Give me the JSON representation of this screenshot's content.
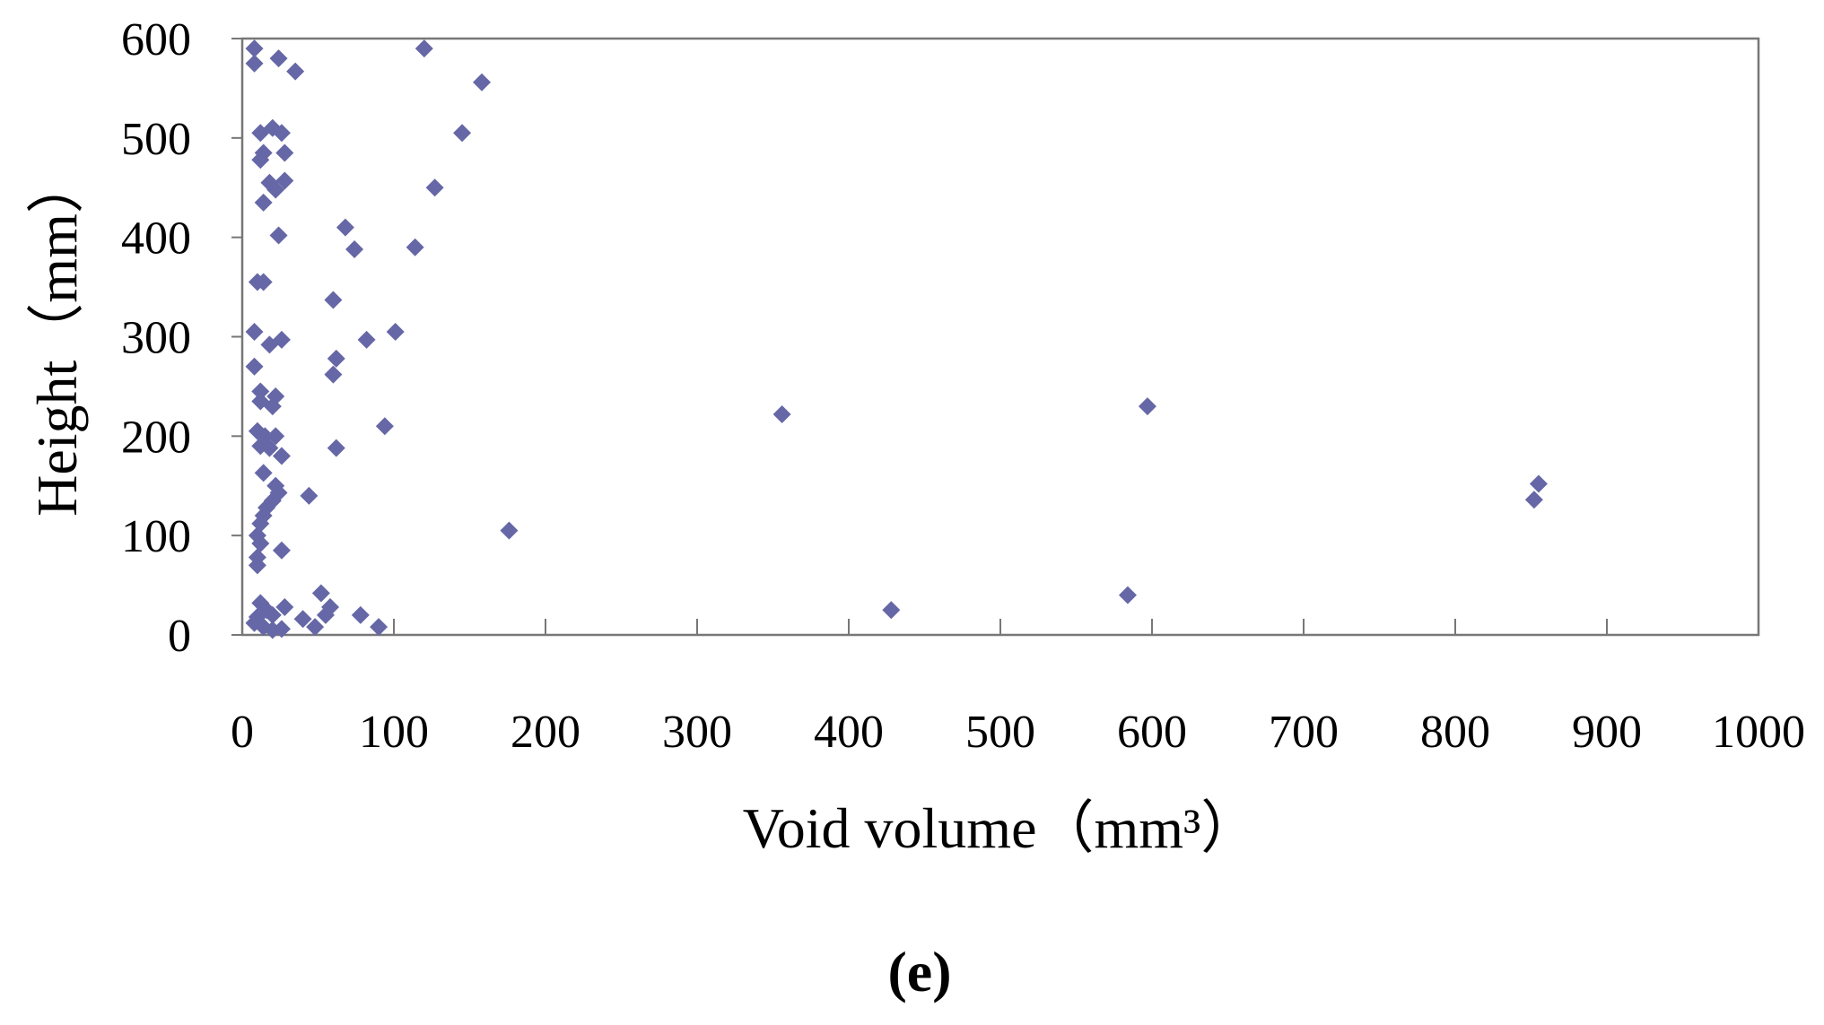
{
  "panel_label": "(e)",
  "chart_data": {
    "type": "scatter",
    "xlabel": "Void volume（mm³）",
    "ylabel": "Height（mm）",
    "xlim": [
      0,
      1000
    ],
    "ylim": [
      0,
      600
    ],
    "x_ticks": [
      "0",
      "100",
      "200",
      "300",
      "400",
      "500",
      "600",
      "700",
      "800",
      "900",
      "1000"
    ],
    "y_ticks": [
      "0",
      "100",
      "200",
      "300",
      "400",
      "500",
      "600"
    ],
    "grid": false,
    "legend": "none",
    "marker": "diamond",
    "marker_color": "#6667a6",
    "series": [
      {
        "points": [
          [
            8,
            590
          ],
          [
            8,
            575
          ],
          [
            24,
            580
          ],
          [
            35,
            567
          ],
          [
            120,
            590
          ],
          [
            158,
            556
          ],
          [
            12,
            505
          ],
          [
            20,
            510
          ],
          [
            26,
            505
          ],
          [
            14,
            485
          ],
          [
            12,
            478
          ],
          [
            28,
            485
          ],
          [
            145,
            505
          ],
          [
            18,
            455
          ],
          [
            22,
            448
          ],
          [
            28,
            457
          ],
          [
            14,
            435
          ],
          [
            127,
            450
          ],
          [
            24,
            402
          ],
          [
            68,
            410
          ],
          [
            74,
            388
          ],
          [
            114,
            390
          ],
          [
            10,
            355
          ],
          [
            14,
            355
          ],
          [
            60,
            337
          ],
          [
            8,
            305
          ],
          [
            18,
            292
          ],
          [
            26,
            297
          ],
          [
            62,
            278
          ],
          [
            60,
            262
          ],
          [
            82,
            297
          ],
          [
            101,
            305
          ],
          [
            8,
            270
          ],
          [
            12,
            245
          ],
          [
            22,
            240
          ],
          [
            12,
            235
          ],
          [
            20,
            230
          ],
          [
            10,
            205
          ],
          [
            15,
            200
          ],
          [
            22,
            200
          ],
          [
            12,
            190
          ],
          [
            18,
            188
          ],
          [
            26,
            180
          ],
          [
            62,
            188
          ],
          [
            94,
            210
          ],
          [
            356,
            222
          ],
          [
            597,
            230
          ],
          [
            14,
            163
          ],
          [
            22,
            150
          ],
          [
            24,
            143
          ],
          [
            20,
            135
          ],
          [
            16,
            128
          ],
          [
            14,
            120
          ],
          [
            12,
            112
          ],
          [
            44,
            140
          ],
          [
            10,
            100
          ],
          [
            12,
            92
          ],
          [
            26,
            85
          ],
          [
            10,
            78
          ],
          [
            10,
            70
          ],
          [
            176,
            105
          ],
          [
            855,
            152
          ],
          [
            852,
            136
          ],
          [
            12,
            32
          ],
          [
            16,
            25
          ],
          [
            20,
            20
          ],
          [
            28,
            28
          ],
          [
            10,
            18
          ],
          [
            8,
            12
          ],
          [
            14,
            8
          ],
          [
            20,
            5
          ],
          [
            26,
            6
          ],
          [
            40,
            16
          ],
          [
            48,
            8
          ],
          [
            52,
            42
          ],
          [
            55,
            20
          ],
          [
            58,
            28
          ],
          [
            78,
            20
          ],
          [
            90,
            8
          ],
          [
            428,
            25
          ],
          [
            584,
            40
          ]
        ]
      }
    ]
  }
}
